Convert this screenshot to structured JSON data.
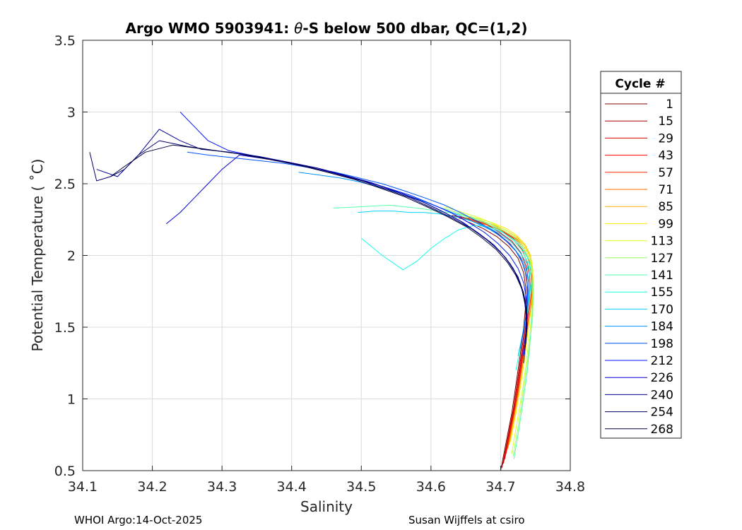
{
  "chart_data": {
    "type": "line",
    "title_prefix": "Argo WMO 5903941: ",
    "title_symbol": "θ",
    "title_suffix": "-S below 500 dbar,  QC=(1,2)",
    "xlabel": "Salinity",
    "ylabel": "Potential Temperature ( ˚C)",
    "xlim": [
      34.1,
      34.8
    ],
    "ylim": [
      0.5,
      3.5
    ],
    "xticks": [
      34.1,
      34.2,
      34.3,
      34.4,
      34.5,
      34.6,
      34.7,
      34.8
    ],
    "xtick_labels": [
      "34.1",
      "34.2",
      "34.3",
      "34.4",
      "34.5",
      "34.6",
      "34.7",
      "34.8"
    ],
    "yticks": [
      0.5,
      1,
      1.5,
      2,
      2.5,
      3,
      3.5
    ],
    "ytick_labels": [
      "0.5",
      "1",
      "1.5",
      "2",
      "2.5",
      "3",
      "3.5"
    ],
    "grid": true,
    "legend_title": "Cycle #",
    "legend_position": "right",
    "footer_left": "WHOI Argo:14-Oct-2025",
    "footer_right": "Susan Wijffels at csiro",
    "series": [
      {
        "name": "1",
        "color": "#7f0000",
        "x": [
          34.7,
          34.708,
          34.716,
          34.722,
          34.728,
          34.733,
          34.736,
          34.736,
          34.733,
          34.725,
          34.712,
          34.695,
          34.674,
          34.65
        ],
        "y": [
          0.5,
          0.7,
          0.9,
          1.1,
          1.3,
          1.5,
          1.65,
          1.78,
          1.88,
          1.98,
          2.06,
          2.13,
          2.19,
          2.24
        ]
      },
      {
        "name": "15",
        "color": "#a80000",
        "x": [
          34.702,
          34.71,
          34.718,
          34.724,
          34.73,
          34.735,
          34.738,
          34.738,
          34.735,
          34.727,
          34.714,
          34.697,
          34.676,
          34.652,
          34.63
        ],
        "y": [
          0.52,
          0.72,
          0.92,
          1.12,
          1.32,
          1.52,
          1.67,
          1.8,
          1.9,
          2.0,
          2.08,
          2.15,
          2.21,
          2.26,
          2.28
        ]
      },
      {
        "name": "29",
        "color": "#d40000",
        "x": [
          34.704,
          34.712,
          34.72,
          34.726,
          34.732,
          34.737,
          34.74,
          34.74,
          34.737,
          34.729,
          34.716,
          34.699,
          34.678,
          34.655,
          34.634
        ],
        "y": [
          0.55,
          0.75,
          0.95,
          1.15,
          1.35,
          1.55,
          1.7,
          1.82,
          1.92,
          2.02,
          2.1,
          2.16,
          2.22,
          2.26,
          2.27
        ]
      },
      {
        "name": "43",
        "color": "#ff0000",
        "x": [
          34.706,
          34.714,
          34.722,
          34.728,
          34.734,
          34.739,
          34.742,
          34.742,
          34.739,
          34.731,
          34.718,
          34.701,
          34.68,
          34.657,
          34.636
        ],
        "y": [
          0.58,
          0.78,
          0.98,
          1.18,
          1.38,
          1.58,
          1.72,
          1.84,
          1.94,
          2.04,
          2.12,
          2.17,
          2.22,
          2.25,
          2.27
        ]
      },
      {
        "name": "57",
        "color": "#ff2a00",
        "x": [
          34.708,
          34.716,
          34.724,
          34.73,
          34.736,
          34.741,
          34.744,
          34.744,
          34.741,
          34.733,
          34.72,
          34.703,
          34.682,
          34.66,
          34.64
        ],
        "y": [
          0.62,
          0.82,
          1.02,
          1.22,
          1.42,
          1.6,
          1.74,
          1.86,
          1.96,
          2.05,
          2.12,
          2.17,
          2.21,
          2.24,
          2.26
        ]
      },
      {
        "name": "71",
        "color": "#ff6a00",
        "x": [
          34.71,
          34.718,
          34.726,
          34.732,
          34.738,
          34.743,
          34.745,
          34.745,
          34.742,
          34.734,
          34.722,
          34.705,
          34.684,
          34.662,
          34.642
        ],
        "y": [
          0.65,
          0.85,
          1.05,
          1.25,
          1.45,
          1.62,
          1.76,
          1.88,
          1.98,
          2.06,
          2.12,
          2.17,
          2.21,
          2.24,
          2.26
        ]
      },
      {
        "name": "85",
        "color": "#ffaa00",
        "x": [
          34.712,
          34.72,
          34.727,
          34.733,
          34.739,
          34.744,
          34.746,
          34.746,
          34.743,
          34.735,
          34.723,
          34.706,
          34.686,
          34.664,
          34.644
        ],
        "y": [
          0.68,
          0.88,
          1.08,
          1.28,
          1.48,
          1.64,
          1.78,
          1.9,
          1.99,
          2.07,
          2.13,
          2.18,
          2.22,
          2.25,
          2.27
        ]
      },
      {
        "name": "99",
        "color": "#ffea00",
        "x": [
          34.714,
          34.722,
          34.729,
          34.735,
          34.74,
          34.745,
          34.747,
          34.746,
          34.743,
          34.735,
          34.723,
          34.707,
          34.687,
          34.666,
          34.646
        ],
        "y": [
          0.7,
          0.9,
          1.1,
          1.3,
          1.5,
          1.66,
          1.8,
          1.91,
          2.0,
          2.08,
          2.14,
          2.19,
          2.23,
          2.26,
          2.28
        ]
      },
      {
        "name": "113",
        "color": "#d4ff2a",
        "x": [
          34.716,
          34.723,
          34.73,
          34.736,
          34.741,
          34.745,
          34.747,
          34.746,
          34.742,
          34.734,
          34.722,
          34.706,
          34.686,
          34.665,
          34.645,
          34.62
        ],
        "y": [
          0.62,
          0.82,
          1.02,
          1.22,
          1.42,
          1.6,
          1.75,
          1.88,
          1.98,
          2.06,
          2.13,
          2.18,
          2.23,
          2.27,
          2.3,
          2.34
        ]
      },
      {
        "name": "127",
        "color": "#94ff6a",
        "x": [
          34.718,
          34.725,
          34.731,
          34.737,
          34.742,
          34.746,
          34.747,
          34.746,
          34.742,
          34.733,
          34.721,
          34.705,
          34.685,
          34.663,
          34.642,
          34.618
        ],
        "y": [
          0.6,
          0.8,
          1.0,
          1.2,
          1.4,
          1.58,
          1.73,
          1.86,
          1.96,
          2.05,
          2.12,
          2.17,
          2.22,
          2.26,
          2.29,
          2.33
        ]
      },
      {
        "name": "141",
        "color": "#54ffaa",
        "x": [
          34.719,
          34.726,
          34.732,
          34.738,
          34.742,
          34.745,
          34.746,
          34.744,
          34.739,
          34.73,
          34.717,
          34.701,
          34.681,
          34.659,
          34.638,
          34.61,
          34.58,
          34.54,
          34.5,
          34.46
        ],
        "y": [
          0.58,
          0.78,
          0.98,
          1.18,
          1.38,
          1.56,
          1.71,
          1.84,
          1.95,
          2.04,
          2.11,
          2.17,
          2.22,
          2.26,
          2.29,
          2.31,
          2.33,
          2.35,
          2.34,
          2.33
        ]
      },
      {
        "name": "155",
        "color": "#14ffea",
        "x": [
          34.722,
          34.728,
          34.734,
          34.739,
          34.742,
          34.744,
          34.743,
          34.739,
          34.731,
          34.719,
          34.703,
          34.683,
          34.662,
          34.64,
          34.62,
          34.6,
          34.58,
          34.56,
          34.53,
          34.5
        ],
        "y": [
          1.2,
          1.35,
          1.5,
          1.62,
          1.73,
          1.83,
          1.91,
          1.98,
          2.05,
          2.11,
          2.16,
          2.2,
          2.21,
          2.18,
          2.12,
          2.05,
          1.96,
          1.9,
          2.0,
          2.12
        ]
      },
      {
        "name": "170",
        "color": "#00d4ff",
        "x": [
          34.725,
          34.731,
          34.736,
          34.74,
          34.742,
          34.741,
          34.737,
          34.728,
          34.716,
          34.7,
          34.68,
          34.658,
          34.635,
          34.612,
          34.59,
          34.57,
          34.545,
          34.52,
          34.495
        ],
        "y": [
          1.3,
          1.44,
          1.57,
          1.68,
          1.78,
          1.87,
          1.95,
          2.02,
          2.09,
          2.15,
          2.2,
          2.24,
          2.27,
          2.29,
          2.3,
          2.3,
          2.31,
          2.31,
          2.3
        ]
      },
      {
        "name": "184",
        "color": "#0094ff",
        "x": [
          34.728,
          34.733,
          34.737,
          34.74,
          34.74,
          34.737,
          34.73,
          34.719,
          34.704,
          34.685,
          34.663,
          34.64,
          34.615,
          34.588,
          34.56,
          34.53,
          34.5,
          34.47,
          34.44,
          34.41
        ],
        "y": [
          1.35,
          1.48,
          1.6,
          1.71,
          1.81,
          1.9,
          1.98,
          2.05,
          2.12,
          2.18,
          2.23,
          2.28,
          2.33,
          2.38,
          2.43,
          2.47,
          2.51,
          2.54,
          2.56,
          2.58
        ]
      },
      {
        "name": "198",
        "color": "#0054ff",
        "x": [
          34.73,
          34.735,
          34.738,
          34.739,
          34.737,
          34.731,
          34.722,
          34.708,
          34.69,
          34.669,
          34.646,
          34.62,
          34.592,
          34.562,
          34.53,
          34.497,
          34.463,
          34.428,
          34.392,
          34.355,
          34.318,
          34.28,
          34.25
        ],
        "y": [
          1.4,
          1.53,
          1.65,
          1.76,
          1.86,
          1.95,
          2.03,
          2.1,
          2.17,
          2.23,
          2.29,
          2.35,
          2.4,
          2.45,
          2.5,
          2.54,
          2.58,
          2.61,
          2.64,
          2.66,
          2.68,
          2.7,
          2.72
        ]
      },
      {
        "name": "212",
        "color": "#0014ff",
        "x": [
          34.732,
          34.736,
          34.738,
          34.737,
          34.733,
          34.725,
          34.713,
          34.697,
          34.677,
          34.654,
          34.628,
          34.6,
          34.57,
          34.538,
          34.504,
          34.468,
          34.43,
          34.39,
          34.35,
          34.31,
          34.28,
          34.26,
          34.24
        ],
        "y": [
          1.3,
          1.45,
          1.58,
          1.7,
          1.81,
          1.91,
          2.0,
          2.08,
          2.16,
          2.23,
          2.3,
          2.36,
          2.42,
          2.47,
          2.52,
          2.57,
          2.61,
          2.65,
          2.69,
          2.73,
          2.8,
          2.9,
          3.0
        ]
      },
      {
        "name": "226",
        "color": "#0000d4",
        "x": [
          34.733,
          34.736,
          34.737,
          34.735,
          34.73,
          34.721,
          34.708,
          34.691,
          34.67,
          34.646,
          34.619,
          34.59,
          34.558,
          34.524,
          34.488,
          34.45,
          34.41,
          34.368,
          34.325,
          34.3,
          34.28,
          34.26,
          34.24,
          34.22
        ],
        "y": [
          1.25,
          1.4,
          1.54,
          1.66,
          1.78,
          1.88,
          1.98,
          2.07,
          2.15,
          2.23,
          2.3,
          2.37,
          2.43,
          2.49,
          2.54,
          2.59,
          2.63,
          2.67,
          2.7,
          2.6,
          2.5,
          2.4,
          2.3,
          2.22
        ]
      },
      {
        "name": "240",
        "color": "#000094",
        "x": [
          34.734,
          34.737,
          34.737,
          34.734,
          34.728,
          34.718,
          34.704,
          34.686,
          34.664,
          34.639,
          34.611,
          34.581,
          34.548,
          34.513,
          34.476,
          34.437,
          34.396,
          34.353,
          34.31,
          34.27,
          34.24,
          34.21,
          34.18,
          34.15,
          34.12
        ],
        "y": [
          1.3,
          1.45,
          1.58,
          1.7,
          1.81,
          1.91,
          2.0,
          2.09,
          2.17,
          2.25,
          2.32,
          2.39,
          2.45,
          2.51,
          2.56,
          2.61,
          2.65,
          2.69,
          2.72,
          2.74,
          2.8,
          2.88,
          2.7,
          2.55,
          2.6
        ]
      },
      {
        "name": "254",
        "color": "#00006a",
        "x": [
          34.735,
          34.738,
          34.737,
          34.733,
          34.725,
          34.714,
          34.699,
          34.68,
          34.657,
          34.631,
          34.602,
          34.571,
          34.537,
          34.501,
          34.463,
          34.423,
          34.381,
          34.337,
          34.292,
          34.25,
          34.21,
          34.18,
          34.16,
          34.14,
          34.12,
          34.11
        ],
        "y": [
          1.35,
          1.5,
          1.63,
          1.74,
          1.85,
          1.94,
          2.03,
          2.11,
          2.19,
          2.26,
          2.33,
          2.4,
          2.46,
          2.52,
          2.57,
          2.62,
          2.66,
          2.7,
          2.73,
          2.76,
          2.8,
          2.7,
          2.6,
          2.55,
          2.52,
          2.72
        ]
      },
      {
        "name": "268",
        "color": "#00003c",
        "x": [
          34.736,
          34.738,
          34.736,
          34.731,
          34.722,
          34.71,
          34.694,
          34.674,
          34.651,
          34.624,
          34.594,
          34.562,
          34.527,
          34.49,
          34.451,
          34.41,
          34.367,
          34.322,
          34.276,
          34.23,
          34.19,
          34.16,
          34.14
        ],
        "y": [
          1.38,
          1.52,
          1.65,
          1.76,
          1.86,
          1.95,
          2.04,
          2.12,
          2.2,
          2.27,
          2.34,
          2.41,
          2.47,
          2.53,
          2.58,
          2.63,
          2.67,
          2.71,
          2.74,
          2.77,
          2.72,
          2.62,
          2.55
        ]
      }
    ]
  }
}
